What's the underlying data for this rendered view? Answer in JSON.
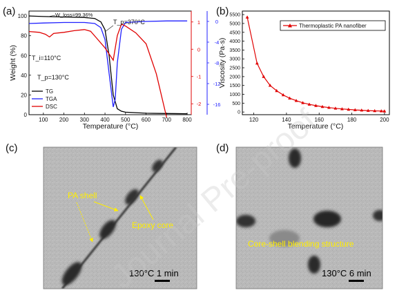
{
  "figure": {
    "panel_labels": [
      "(a)",
      "(b)",
      "(c)",
      "(d)"
    ],
    "watermark": "Journal Pre-proof",
    "colors": {
      "tg": "#000000",
      "tga": "#1f1fff",
      "dsc": "#e00000",
      "visc": "#e00000",
      "annotation": "#ffee00",
      "tga_axis": "#1f1fff",
      "dsc_axis": "#e00000"
    }
  },
  "chart_data": [
    {
      "panel": "(a)",
      "type": "line",
      "xlabel": "Temperature (°C)",
      "ylabel": "Weight (%)",
      "xlim": [
        30,
        820
      ],
      "ylim": [
        0,
        105
      ],
      "x_ticks": [
        "100",
        "200",
        "300",
        "400",
        "500",
        "600",
        "700",
        "800"
      ],
      "y_ticks": [
        "0",
        "20",
        "40",
        "60",
        "80",
        "100"
      ],
      "right_axis_dsc": {
        "ticks": [
          "1",
          "0",
          "-1",
          "-2"
        ],
        "range": [
          -2.4,
          1.4
        ]
      },
      "right_axis_tga": {
        "ticks": [
          "0",
          "-4",
          "-8",
          "-12",
          "-16"
        ],
        "range": [
          -18,
          2
        ]
      },
      "legend": [
        "TG",
        "TGA",
        "DSC"
      ],
      "legend_position": "lower-left",
      "annotations": [
        "W_loss=99.36%",
        "T_p=370°C",
        "T_i=110°C",
        "T_p=130°C"
      ],
      "series": [
        {
          "name": "TG",
          "axis": "left",
          "x": [
            30,
            100,
            200,
            300,
            350,
            380,
            400,
            420,
            440,
            460,
            480,
            500,
            550,
            600,
            700,
            800
          ],
          "y": [
            100,
            99.5,
            99.0,
            98.5,
            97.5,
            94,
            86,
            60,
            20,
            6,
            3.5,
            2.5,
            2,
            1.5,
            1.2,
            1.0
          ]
        },
        {
          "name": "TGA",
          "axis": "tga",
          "x": [
            30,
            100,
            200,
            300,
            350,
            380,
            400,
            420,
            440,
            450,
            460,
            480,
            500,
            600,
            700,
            800
          ],
          "y": [
            -0.4,
            -0.3,
            -0.2,
            -0.2,
            -0.4,
            -1.2,
            -3.5,
            -10,
            -16.5,
            -15,
            -8,
            -1.5,
            -0.2,
            0,
            0.1,
            0.1
          ]
        },
        {
          "name": "DSC",
          "axis": "dsc",
          "x": [
            30,
            80,
            110,
            130,
            150,
            200,
            250,
            300,
            330,
            360,
            400,
            440,
            460,
            480,
            500,
            550,
            600,
            650,
            700
          ],
          "y": [
            0.65,
            0.62,
            0.55,
            0.45,
            0.58,
            0.62,
            0.68,
            0.72,
            0.66,
            0.4,
            0.05,
            -0.4,
            0.5,
            0.92,
            0.85,
            0.6,
            0.2,
            -0.9,
            -2.5
          ]
        }
      ]
    },
    {
      "panel": "(b)",
      "type": "line",
      "xlabel": "Temperature (°C)",
      "ylabel": "Viscosity (Pa·s)",
      "xlim": [
        113,
        203
      ],
      "ylim": [
        -150,
        5700
      ],
      "x_ticks": [
        "120",
        "140",
        "160",
        "180",
        "200"
      ],
      "y_ticks": [
        "0",
        "500",
        "1000",
        "1500",
        "2000",
        "2500",
        "3000",
        "3500",
        "4000",
        "4500",
        "5000",
        "5500"
      ],
      "legend_position": "top-right",
      "series": [
        {
          "name": "Thermoplastic PA nanofiber",
          "x": [
            116,
            122,
            126,
            130,
            134,
            138,
            142,
            146,
            150,
            154,
            158,
            162,
            166,
            170,
            174,
            178,
            182,
            186,
            190,
            194,
            198,
            200
          ],
          "y": [
            5350,
            2750,
            2000,
            1500,
            1200,
            960,
            780,
            640,
            520,
            430,
            360,
            300,
            250,
            210,
            175,
            145,
            120,
            100,
            80,
            65,
            55,
            50
          ]
        }
      ]
    }
  ],
  "micrographs": [
    {
      "panel": "(c)",
      "labels": [
        "PA shell",
        "Epoxy core"
      ],
      "scale": "130°C 1 min"
    },
    {
      "panel": "(d)",
      "labels": [
        "Core-shell blending structure"
      ],
      "scale": "130°C 6 min"
    }
  ]
}
